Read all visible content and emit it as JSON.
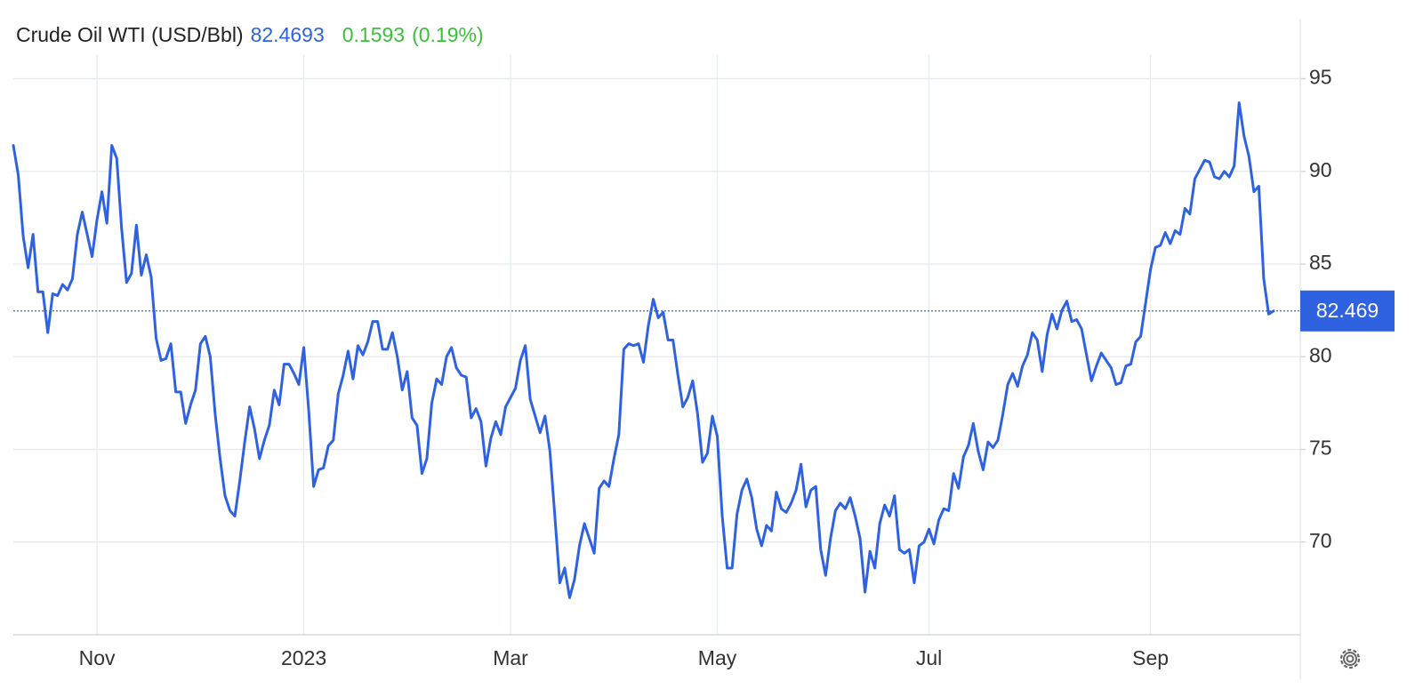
{
  "chart_data": {
    "type": "line",
    "title": "Crude Oil WTI (USD/Bbl)",
    "price": 82.4693,
    "change": 0.1593,
    "change_pct": "(0.19%)",
    "current": {
      "value": 82.4693,
      "label": "82.469"
    },
    "color": "#2f62e0",
    "change_color": "#3cbf3c",
    "grid": true,
    "ylim": [
      65,
      96.3
    ],
    "yticks": [
      70,
      75,
      80,
      85,
      90,
      95
    ],
    "categories": [
      null,
      null,
      null,
      null,
      null,
      null,
      null,
      null,
      null,
      null,
      null,
      null,
      null,
      null,
      null,
      null,
      null,
      "Nov",
      null,
      null,
      null,
      null,
      null,
      null,
      null,
      null,
      null,
      null,
      null,
      null,
      null,
      null,
      null,
      null,
      null,
      null,
      null,
      null,
      null,
      null,
      null,
      null,
      null,
      null,
      null,
      null,
      null,
      null,
      null,
      null,
      null,
      null,
      null,
      null,
      null,
      null,
      null,
      null,
      null,
      "2023",
      null,
      null,
      null,
      null,
      null,
      null,
      null,
      null,
      null,
      null,
      null,
      null,
      null,
      null,
      null,
      null,
      null,
      null,
      null,
      null,
      null,
      null,
      null,
      null,
      null,
      null,
      null,
      null,
      null,
      null,
      null,
      null,
      null,
      null,
      null,
      null,
      null,
      null,
      null,
      null,
      null,
      "Mar",
      null,
      null,
      null,
      null,
      null,
      null,
      null,
      null,
      null,
      null,
      null,
      null,
      null,
      null,
      null,
      null,
      null,
      null,
      null,
      null,
      null,
      null,
      null,
      null,
      null,
      null,
      null,
      null,
      null,
      null,
      null,
      null,
      null,
      null,
      null,
      null,
      null,
      null,
      null,
      null,
      null,
      "May",
      null,
      null,
      null,
      null,
      null,
      null,
      null,
      null,
      null,
      null,
      null,
      null,
      null,
      null,
      null,
      null,
      null,
      null,
      null,
      null,
      null,
      null,
      null,
      null,
      null,
      null,
      null,
      null,
      null,
      null,
      null,
      null,
      null,
      null,
      null,
      null,
      null,
      null,
      null,
      null,
      null,
      null,
      "Jul",
      null,
      null,
      null,
      null,
      null,
      null,
      null,
      null,
      null,
      null,
      null,
      null,
      null,
      null,
      null,
      null,
      null,
      null,
      null,
      null,
      null,
      null,
      null,
      null,
      null,
      null,
      null,
      null,
      null,
      null,
      null,
      null,
      null,
      null,
      null,
      null,
      null,
      null,
      null,
      null,
      null,
      null,
      null,
      null,
      "Sep",
      null,
      null,
      null,
      null,
      null,
      null,
      null,
      null,
      null,
      null,
      null,
      null,
      null,
      null,
      null,
      null,
      null,
      null,
      null,
      null,
      null,
      null,
      null,
      null,
      null
    ],
    "values": [
      91.4,
      89.8,
      86.5,
      84.8,
      86.6,
      83.5,
      83.5,
      81.3,
      83.4,
      83.3,
      83.9,
      83.6,
      84.2,
      86.6,
      87.8,
      86.6,
      85.4,
      87.4,
      88.9,
      87.2,
      91.4,
      90.7,
      86.9,
      84.0,
      84.5,
      87.1,
      84.4,
      85.5,
      84.3,
      81.0,
      79.8,
      79.9,
      80.7,
      78.1,
      78.1,
      76.4,
      77.4,
      78.2,
      80.7,
      81.1,
      80.0,
      76.9,
      74.5,
      72.5,
      71.7,
      71.4,
      73.3,
      75.4,
      77.3,
      76.1,
      74.5,
      75.5,
      76.3,
      78.2,
      77.4,
      79.6,
      79.6,
      79.1,
      78.5,
      80.5,
      77.1,
      73.0,
      73.9,
      74.0,
      75.2,
      75.5,
      78.0,
      79.0,
      80.3,
      78.8,
      80.6,
      80.1,
      80.8,
      81.9,
      81.9,
      80.4,
      80.4,
      81.3,
      80.0,
      78.2,
      79.2,
      76.7,
      76.3,
      73.7,
      74.5,
      77.5,
      78.8,
      78.5,
      80.0,
      80.5,
      79.4,
      79.0,
      78.9,
      76.7,
      77.2,
      76.5,
      74.1,
      75.6,
      76.5,
      75.8,
      77.3,
      77.8,
      78.3,
      79.8,
      80.6,
      77.7,
      76.8,
      75.9,
      76.8,
      74.9,
      71.4,
      67.8,
      68.6,
      67.0,
      68.0,
      69.8,
      71.0,
      70.2,
      69.4,
      72.9,
      73.3,
      73.0,
      74.5,
      75.8,
      80.4,
      80.7,
      80.6,
      80.7,
      79.7,
      81.7,
      83.1,
      82.1,
      82.4,
      80.9,
      80.9,
      79.0,
      77.3,
      77.8,
      78.7,
      76.9,
      74.3,
      74.8,
      76.8,
      75.7,
      71.4,
      68.6,
      68.6,
      71.5,
      72.8,
      73.4,
      72.4,
      70.7,
      69.8,
      70.9,
      70.6,
      72.7,
      71.8,
      71.6,
      72.1,
      72.8,
      74.2,
      71.9,
      72.8,
      73.0,
      69.6,
      68.2,
      70.2,
      71.7,
      72.1,
      71.8,
      72.4,
      71.4,
      70.2,
      67.3,
      69.5,
      68.6,
      71.0,
      72.0,
      71.4,
      72.5,
      69.6,
      69.4,
      69.6,
      67.8,
      69.8,
      70.0,
      70.7,
      69.9,
      71.2,
      71.8,
      71.7,
      73.7,
      72.9,
      74.6,
      75.2,
      76.4,
      74.9,
      73.9,
      75.4,
      75.1,
      75.5,
      76.9,
      78.5,
      79.1,
      78.4,
      79.5,
      80.1,
      81.3,
      80.9,
      79.2,
      81.2,
      82.3,
      81.5,
      82.5,
      83.0,
      81.9,
      82.0,
      81.5,
      80.1,
      78.7,
      79.5,
      80.2,
      79.8,
      79.4,
      78.5,
      78.6,
      79.5,
      79.6,
      80.8,
      81.1,
      82.9,
      84.7,
      85.9,
      86.0,
      86.7,
      86.1,
      86.8,
      86.6,
      88.0,
      87.7,
      89.6,
      90.1,
      90.6,
      90.5,
      89.7,
      89.6,
      90.0,
      89.7,
      90.3,
      93.7,
      91.9,
      90.8,
      88.9,
      89.2,
      84.2,
      82.3,
      82.4693
    ]
  }
}
